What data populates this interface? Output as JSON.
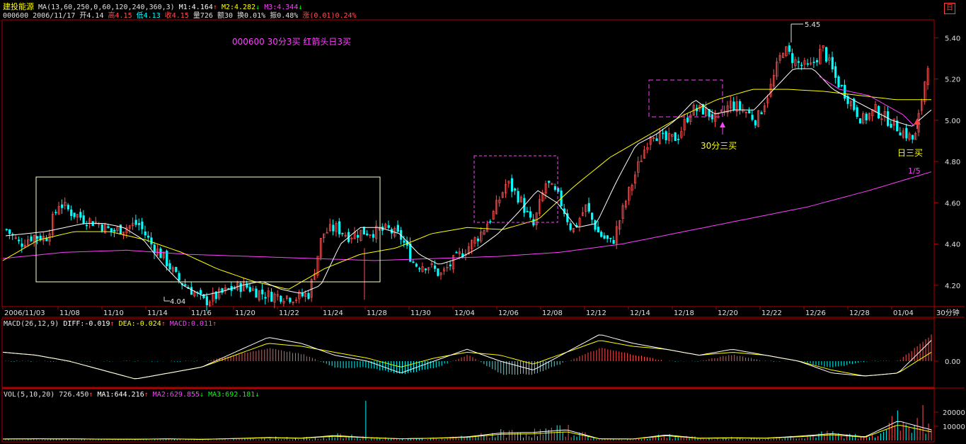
{
  "colors": {
    "bg": "#000000",
    "frame": "#b00000",
    "up": "#ff5050",
    "down": "#00ffff",
    "m1": "#ffffff",
    "m2": "#ffff00",
    "m3": "#ff40ff",
    "yellow": "#ffff00",
    "magenta": "#ff40ff"
  },
  "header": {
    "name": "建投能源",
    "ma_label": "MA(13,60,250,0,60,120,240,360,3)",
    "m1": "M1:4.164",
    "m2": "M2:4.282",
    "m3": "M3:4.344",
    "code_date": "000600 2006/11/17",
    "open": "开4.14",
    "high": "高4.15",
    "low": "低4.13",
    "close": "收4.15",
    "vol": "量726",
    "amount": "额30",
    "turnover": "换0.01%",
    "amplitude": "振0.48%",
    "change_label": "涨",
    "change": "(0.01)0.24%",
    "corner_icon": "日"
  },
  "chart_title": "000600  30分3买  红箭头日3买",
  "annotations": {
    "high": "5.45",
    "low": "4.04",
    "buy30": "30分三买",
    "buyday": "日三买",
    "frac": "1/5"
  },
  "period_label": "30分钟",
  "macd_header": {
    "label": "MACD(26,12,9)",
    "diff": "DIFF:-0.019",
    "dea": "DEA:-0.024",
    "macd": "MACD:0.011"
  },
  "vol_header": {
    "label": "VOL(5,10,20)",
    "vol": "726.450",
    "ma1": "MA1:644.216",
    "ma2": "MA2:629.855",
    "ma3": "MA3:692.181"
  },
  "chart_data": [
    {
      "type": "candlestick",
      "ylim": [
        4.1,
        5.48
      ],
      "yticks": [
        4.2,
        4.4,
        4.6,
        4.8,
        5.0,
        5.2,
        5.4
      ],
      "xticks": [
        "2006/11/03",
        "11/08",
        "11/10",
        "11/14",
        "11/16",
        "11/20",
        "11/22",
        "11/24",
        "11/28",
        "11/30",
        "12/04",
        "12/06",
        "12/08",
        "12/12",
        "12/14",
        "12/18",
        "12/20",
        "12/22",
        "12/26",
        "12/28",
        "01/04"
      ],
      "close_path": [
        4.47,
        4.4,
        4.44,
        4.43,
        4.6,
        4.55,
        4.52,
        4.5,
        4.46,
        4.48,
        4.5,
        4.4,
        4.33,
        4.23,
        4.18,
        4.12,
        4.15,
        4.18,
        4.2,
        4.17,
        4.15,
        4.15,
        4.14,
        4.16,
        4.45,
        4.48,
        4.44,
        4.46,
        4.46,
        4.47,
        4.43,
        4.3,
        4.3,
        4.25,
        4.32,
        4.38,
        4.45,
        4.55,
        4.7,
        4.62,
        4.48,
        4.7,
        4.62,
        4.46,
        4.58,
        4.45,
        4.4,
        4.6,
        4.78,
        4.95,
        4.9,
        4.92,
        5.05,
        5.05,
        5.0,
        5.08,
        5.05,
        5.0,
        5.15,
        5.35,
        5.28,
        5.25,
        5.35,
        5.2,
        5.1,
        5.0,
        5.05,
        5.0,
        4.95,
        4.9,
        5.28
      ],
      "m1_path": [
        4.44,
        4.45,
        4.46,
        4.48,
        4.5,
        4.5,
        4.48,
        4.42,
        4.3,
        4.2,
        4.15,
        4.17,
        4.2,
        4.22,
        4.18,
        4.16,
        4.2,
        4.4,
        4.48,
        4.48,
        4.45,
        4.35,
        4.3,
        4.33,
        4.38,
        4.45,
        4.55,
        4.66,
        4.6,
        4.48,
        4.5,
        4.7,
        4.88,
        4.93,
        5.0,
        5.1,
        5.03,
        5.05,
        5.05,
        5.15,
        5.25,
        5.25,
        5.15,
        5.1,
        5.05,
        5.0,
        4.97,
        5.05
      ],
      "m2_path": [
        4.32,
        4.42,
        4.46,
        4.46,
        4.42,
        4.36,
        4.28,
        4.22,
        4.18,
        4.28,
        4.35,
        4.38,
        4.45,
        4.48,
        4.47,
        4.52,
        4.68,
        4.82,
        4.92,
        5.02,
        5.1,
        5.15,
        5.15,
        5.14,
        5.12,
        5.1,
        5.1
      ],
      "m3_path": [
        4.33,
        4.36,
        4.37,
        4.35,
        4.34,
        4.33,
        4.32,
        4.33,
        4.34,
        4.36,
        4.4,
        4.46,
        4.52,
        4.58,
        4.66,
        4.75
      ]
    },
    {
      "type": "bar+line",
      "name": "MACD",
      "yticks": [
        0.0
      ],
      "diff_path": [
        0.03,
        0.02,
        0.0,
        -0.03,
        -0.06,
        -0.04,
        -0.02,
        0.03,
        0.08,
        0.06,
        0.02,
        0.0,
        -0.04,
        0.0,
        0.04,
        0.0,
        -0.03,
        0.03,
        0.09,
        0.06,
        0.04,
        0.02,
        0.04,
        0.02,
        0.0,
        -0.04,
        -0.05,
        -0.04,
        0.07
      ],
      "dea_path": [
        0.03,
        0.02,
        0.0,
        -0.03,
        -0.06,
        -0.04,
        -0.02,
        0.02,
        0.06,
        0.05,
        0.03,
        0.01,
        -0.02,
        0.01,
        0.03,
        0.02,
        -0.01,
        0.03,
        0.07,
        0.05,
        0.04,
        0.02,
        0.03,
        0.02,
        0.0,
        -0.03,
        -0.05,
        -0.04,
        0.03
      ]
    },
    {
      "type": "bar+line",
      "name": "VOL",
      "yticks": [
        10000,
        20000
      ],
      "values_approx": [
        800,
        1000,
        900,
        700,
        600,
        900,
        500,
        1200,
        2000,
        1500,
        3500,
        2000,
        1000,
        1500,
        2500,
        5500,
        6000,
        8000,
        900,
        800,
        4000,
        1500,
        1800,
        1500,
        3000,
        5000,
        2500,
        15000,
        8000
      ]
    }
  ]
}
